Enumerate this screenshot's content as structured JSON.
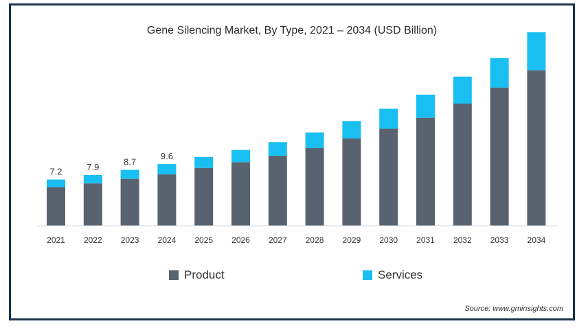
{
  "chart_data": {
    "type": "bar",
    "stacked": true,
    "title": "Gene Silencing Market, By Type, 2021 – 2034 (USD Billion)",
    "categories": [
      "2021",
      "2022",
      "2023",
      "2024",
      "2025",
      "2026",
      "2027",
      "2028",
      "2029",
      "2030",
      "2031",
      "2032",
      "2033",
      "2034"
    ],
    "series": [
      {
        "name": "Product",
        "color": "#596370",
        "values": [
          6.0,
          6.6,
          7.3,
          8.0,
          9.0,
          9.9,
          10.9,
          12.1,
          13.6,
          15.1,
          16.8,
          19.0,
          21.5,
          24.2
        ]
      },
      {
        "name": "Services",
        "color": "#18bff0",
        "values": [
          1.2,
          1.3,
          1.4,
          1.6,
          1.7,
          1.9,
          2.1,
          2.4,
          2.7,
          3.1,
          3.6,
          4.2,
          4.6,
          5.9
        ]
      }
    ],
    "data_labels": [
      "7.2",
      "7.9",
      "8.7",
      "9.6",
      "",
      "",
      "",
      "",
      "",
      "",
      "",
      "",
      "",
      ""
    ],
    "ylim": [
      0,
      30
    ],
    "legend_position": "bottom",
    "grid": false
  },
  "source_text": "Source: www.gminsights.com"
}
